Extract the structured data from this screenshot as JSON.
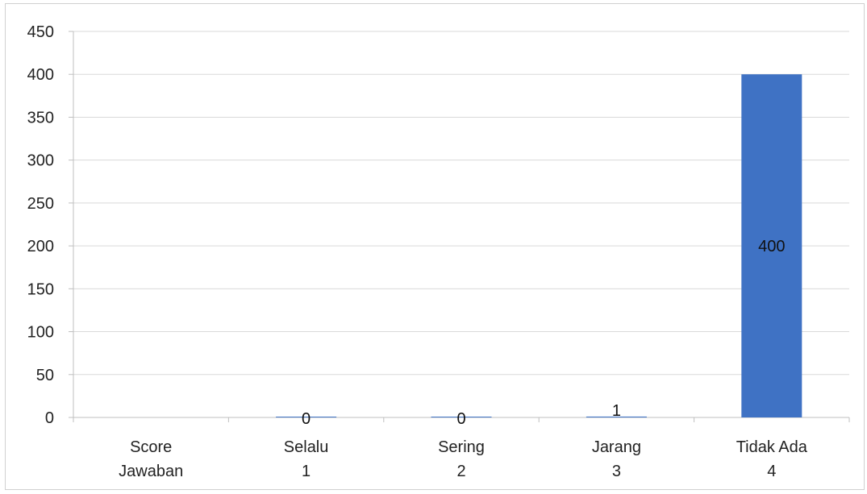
{
  "chart_data": {
    "type": "bar",
    "categories": [
      [
        "Score",
        "Jawaban"
      ],
      [
        "Selalu",
        "1"
      ],
      [
        "Sering",
        "2"
      ],
      [
        "Jarang",
        "3"
      ],
      [
        "Tidak Ada",
        "4"
      ]
    ],
    "values": [
      null,
      0,
      0,
      1,
      400
    ],
    "data_labels": [
      "",
      "0",
      "0",
      "1",
      "400"
    ],
    "ylim": [
      0,
      450
    ],
    "yticks": [
      0,
      50,
      100,
      150,
      200,
      250,
      300,
      350,
      400,
      450
    ],
    "grid": true,
    "legend": "none",
    "bar_color": "#3f72c4",
    "grid_color": "#d9d9d9"
  }
}
